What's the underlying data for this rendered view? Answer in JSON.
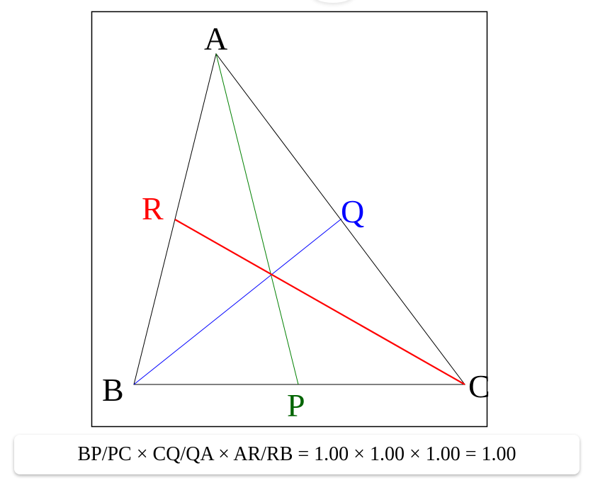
{
  "points": {
    "A": {
      "label": "A",
      "color": "#000000"
    },
    "B": {
      "label": "B",
      "color": "#000000"
    },
    "C": {
      "label": "C",
      "color": "#000000"
    },
    "P": {
      "label": "P",
      "color": "#006400"
    },
    "Q": {
      "label": "Q",
      "color": "#0000ff"
    },
    "R": {
      "label": "R",
      "color": "#ff0000"
    }
  },
  "cevian_colors": {
    "AP": "#008000",
    "BQ": "#0000ff",
    "CR": "#ff0000"
  },
  "equation": "BP/PC × CQ/QA × AR/RB = 1.00 × 1.00 × 1.00 = 1.00"
}
